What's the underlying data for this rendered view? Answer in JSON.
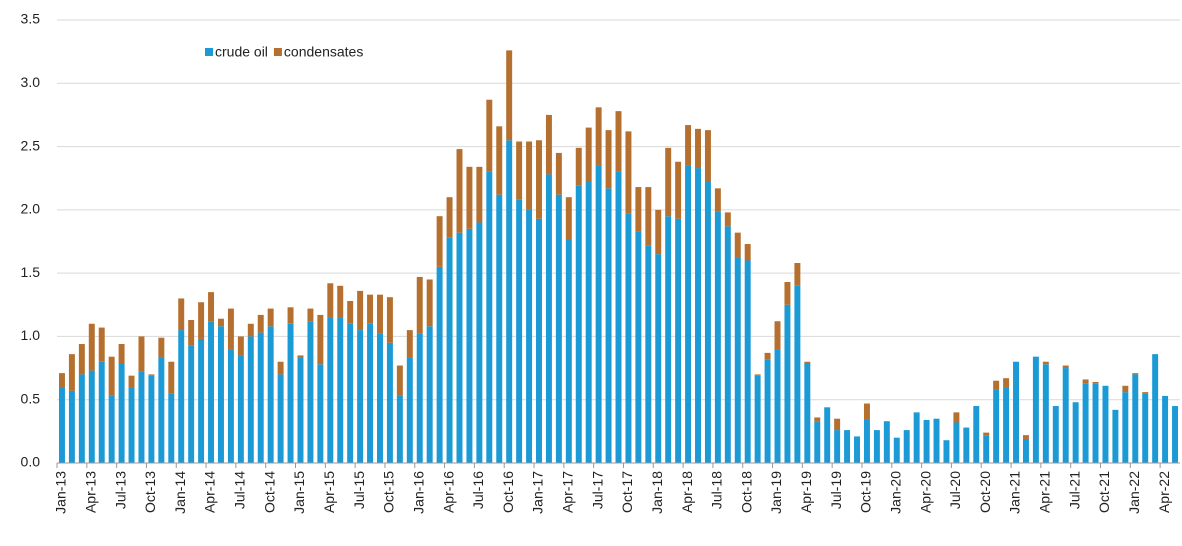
{
  "chart_data": {
    "type": "stacked-bar",
    "categories": [
      "Jan-13",
      null,
      null,
      "Apr-13",
      null,
      null,
      "Jul-13",
      null,
      null,
      "Oct-13",
      null,
      null,
      "Jan-14",
      null,
      null,
      "Apr-14",
      null,
      null,
      "Jul-14",
      null,
      null,
      "Oct-14",
      null,
      null,
      "Jan-15",
      null,
      null,
      "Apr-15",
      null,
      null,
      "Jul-15",
      null,
      null,
      "Oct-15",
      null,
      null,
      "Jan-16",
      null,
      null,
      "Apr-16",
      null,
      null,
      "Jul-16",
      null,
      null,
      "Oct-16",
      null,
      null,
      "Jan-17",
      null,
      null,
      "Apr-17",
      null,
      null,
      "Jul-17",
      null,
      null,
      "Oct-17",
      null,
      null,
      "Jan-18",
      null,
      null,
      "Apr-18",
      null,
      null,
      "Jul-18",
      null,
      null,
      "Oct-18",
      null,
      null,
      "Jan-19",
      null,
      null,
      "Apr-19",
      null,
      null,
      "Jul-19",
      null,
      null,
      "Oct-19",
      null,
      null,
      "Jan-20",
      null,
      null,
      "Apr-20",
      null,
      null,
      "Jul-20",
      null,
      null,
      "Oct-20",
      null,
      null,
      "Jan-21",
      null,
      null,
      "Apr-21",
      null,
      null,
      "Jul-21",
      null,
      null,
      "Oct-21",
      null,
      null,
      "Jan-22",
      null,
      null,
      "Apr-22",
      null
    ],
    "series": [
      {
        "name": "crude oil",
        "color": "#1b9ad6",
        "values": [
          0.6,
          0.57,
          0.7,
          0.73,
          0.8,
          0.53,
          0.79,
          0.6,
          0.72,
          0.69,
          0.83,
          0.55,
          1.05,
          0.93,
          0.98,
          1.12,
          1.08,
          0.9,
          0.85,
          1.0,
          1.03,
          1.08,
          0.7,
          1.1,
          0.83,
          1.12,
          0.78,
          1.15,
          1.15,
          1.1,
          1.05,
          1.1,
          1.02,
          0.95,
          0.53,
          0.83,
          1.02,
          1.08,
          1.55,
          1.78,
          1.82,
          1.85,
          1.9,
          2.3,
          2.12,
          2.55,
          2.08,
          2.0,
          1.93,
          2.28,
          2.12,
          1.77,
          2.19,
          2.22,
          2.35,
          2.17,
          2.3,
          1.97,
          1.83,
          1.72,
          1.65,
          1.95,
          1.93,
          2.35,
          2.33,
          2.22,
          1.99,
          1.87,
          1.62,
          1.6,
          0.69,
          0.82,
          0.9,
          1.25,
          1.4,
          0.79,
          0.33,
          0.44,
          0.26,
          0.26,
          0.21,
          0.34,
          0.26,
          0.33,
          0.2,
          0.26,
          0.4,
          0.34,
          0.35,
          0.18,
          0.32,
          0.28,
          0.45,
          0.22,
          0.58,
          0.6,
          0.8,
          0.19,
          0.84,
          0.78,
          0.45,
          0.75,
          0.48,
          0.63,
          0.63,
          0.61,
          0.42,
          0.56,
          0.7,
          0.55,
          0.86,
          0.53,
          0.45
        ]
      },
      {
        "name": "condensates",
        "color": "#b5702f",
        "values": [
          0.11,
          0.29,
          0.24,
          0.37,
          0.27,
          0.31,
          0.15,
          0.09,
          0.28,
          0.01,
          0.16,
          0.25,
          0.25,
          0.2,
          0.29,
          0.23,
          0.06,
          0.32,
          0.15,
          0.1,
          0.14,
          0.14,
          0.1,
          0.13,
          0.02,
          0.1,
          0.39,
          0.27,
          0.25,
          0.18,
          0.31,
          0.23,
          0.31,
          0.36,
          0.24,
          0.22,
          0.45,
          0.37,
          0.4,
          0.32,
          0.66,
          0.49,
          0.44,
          0.57,
          0.54,
          0.71,
          0.46,
          0.54,
          0.62,
          0.47,
          0.33,
          0.33,
          0.3,
          0.43,
          0.46,
          0.46,
          0.48,
          0.65,
          0.35,
          0.46,
          0.35,
          0.54,
          0.45,
          0.32,
          0.31,
          0.41,
          0.18,
          0.11,
          0.2,
          0.13,
          0.01,
          0.05,
          0.22,
          0.18,
          0.18,
          0.01,
          0.03,
          0,
          0.09,
          0,
          0,
          0.13,
          0,
          0,
          0,
          0,
          0,
          0,
          0,
          0,
          0.08,
          0,
          0,
          0.02,
          0.07,
          0.07,
          0,
          0.03,
          0,
          0.02,
          0,
          0.02,
          0,
          0.03,
          0.01,
          0,
          0,
          0.05,
          0.01,
          0.01,
          0,
          0,
          0
        ]
      }
    ],
    "ylim": [
      0,
      3.5
    ],
    "yticks": [
      {
        "value": 0,
        "label": "0.0"
      },
      {
        "value": 0.5,
        "label": "0.5"
      },
      {
        "value": 1,
        "label": "1.0"
      },
      {
        "value": 1.5,
        "label": "1.5"
      },
      {
        "value": 2,
        "label": "2.0"
      },
      {
        "value": 2.5,
        "label": "2.5"
      },
      {
        "value": 3,
        "label": "3.0"
      },
      {
        "value": 3.5,
        "label": "3.5"
      }
    ],
    "grid": true,
    "legend": "top-left"
  }
}
